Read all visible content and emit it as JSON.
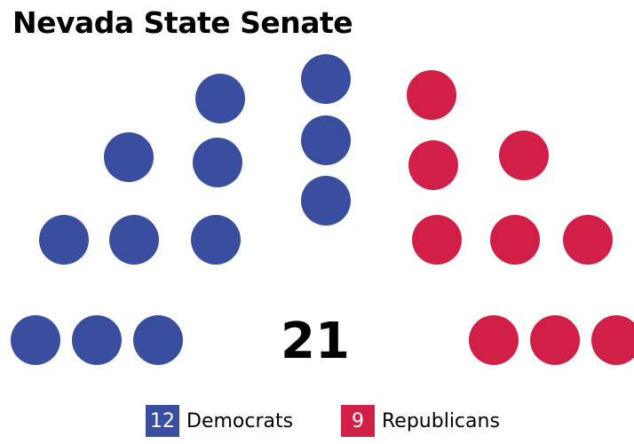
{
  "title": "Nevada State Senate",
  "total_seats": "21",
  "parties": [
    {
      "name": "Democrats",
      "seats": 12,
      "seats_label": "12",
      "color": "#3a4ea0"
    },
    {
      "name": "Republicans",
      "seats": 9,
      "seats_label": "9",
      "color": "#d11f48"
    }
  ],
  "chart_data": {
    "type": "parliament",
    "title": "Nevada State Senate",
    "total": 21,
    "series": [
      {
        "name": "Democrats",
        "values": [
          12
        ]
      },
      {
        "name": "Republicans",
        "values": [
          9
        ]
      }
    ]
  }
}
